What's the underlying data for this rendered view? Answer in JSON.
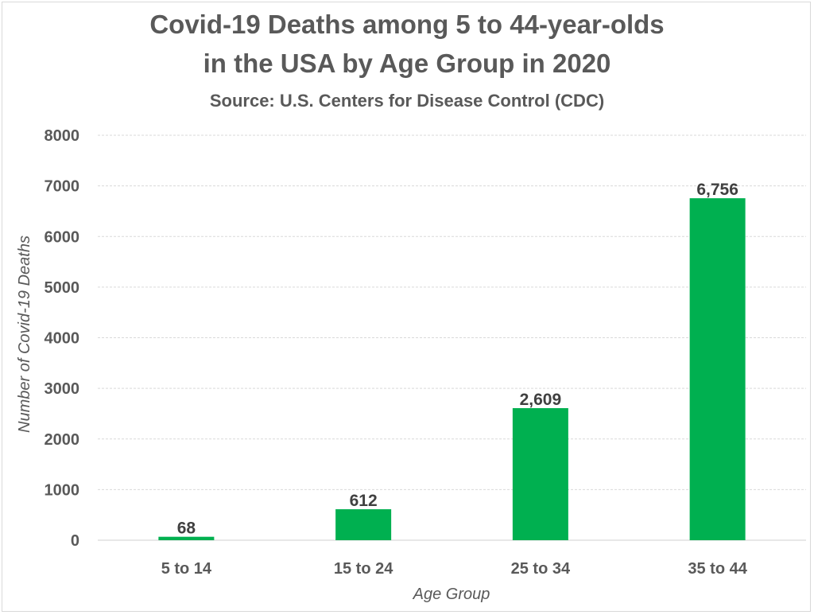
{
  "chart_data": {
    "type": "bar",
    "title": "Covid-19 Deaths among 5 to 44-year-olds",
    "title_line2": "in the USA by Age Group in 2020",
    "subtitle": "Source: U.S. Centers for Disease Control (CDC)",
    "xlabel": "Age Group",
    "ylabel": "Number of Covid-19 Deaths",
    "categories": [
      "5 to 14",
      "15 to 24",
      "25 to 34",
      "35 to 44"
    ],
    "values": [
      68,
      612,
      2609,
      6756
    ],
    "data_labels": [
      "68",
      "612",
      "2,609",
      "6,756"
    ],
    "yticks": [
      "0",
      "1000",
      "2000",
      "3000",
      "4000",
      "5000",
      "6000",
      "7000",
      "8000"
    ],
    "ylim": [
      0,
      8000
    ],
    "grid": true,
    "legend": "none",
    "bar_color": "#00b050"
  }
}
